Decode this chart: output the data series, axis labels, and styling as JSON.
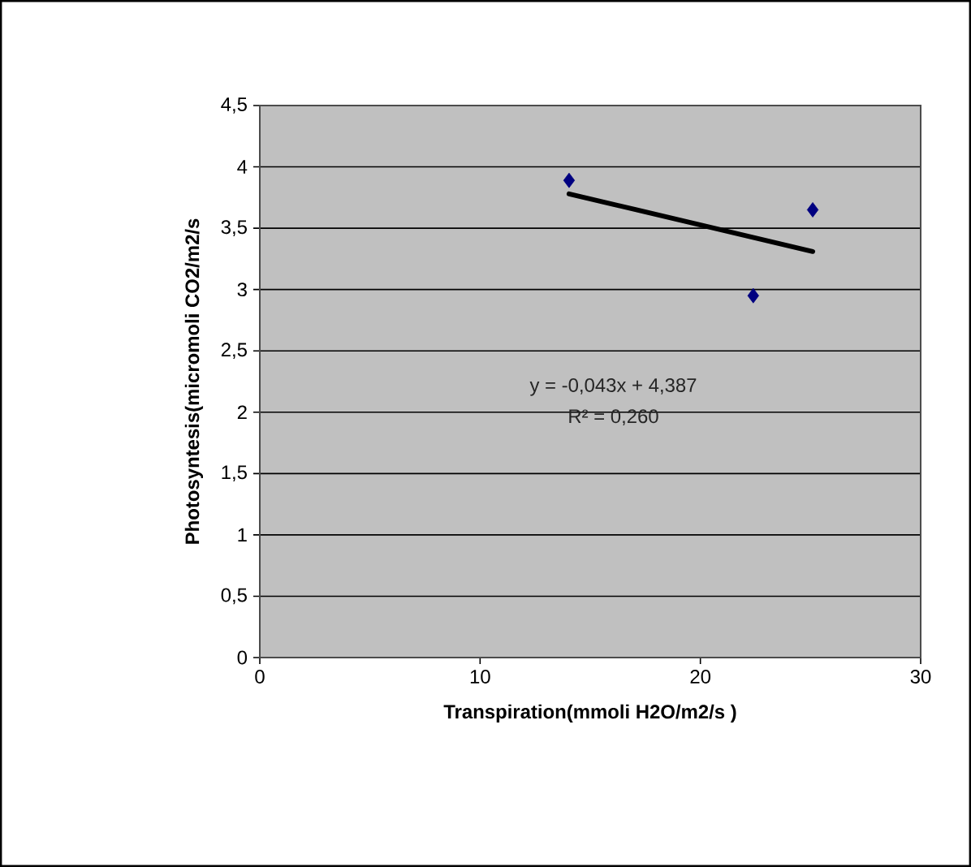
{
  "chart_data": {
    "type": "scatter",
    "xlabel": "Transpiration(mmoli H2O/m2/s )",
    "ylabel": "Photosyntesis(micromoli CO2/m2/s",
    "series": [
      {
        "color": "#000080",
        "marker": "diamond",
        "x": [
          14.04,
          22.4,
          25.1
        ],
        "values": [
          3.89,
          2.95,
          3.65
        ]
      },
      {
        "type": "line",
        "color": "#000000",
        "marker": "none",
        "line_style": "solid",
        "x": [
          14.04,
          25.1
        ],
        "values": [
          3.78,
          3.31
        ]
      }
    ],
    "xlim": [
      0,
      30
    ],
    "xticks": [
      0,
      10,
      20,
      30
    ],
    "ylim": [
      0,
      4.5
    ],
    "yticks": [
      0,
      {
        "value": 0.5,
        "label": "0,5"
      },
      1,
      {
        "value": 1.5,
        "label": "1,5"
      },
      2,
      {
        "value": 2.5,
        "label": "2,5"
      },
      3,
      {
        "value": 3.5,
        "label": "3,5"
      },
      4,
      {
        "value": 4.5,
        "label": "4,5"
      }
    ],
    "grid": "y",
    "annotations": [
      "y = -0,043x + 4,387",
      "R² = 0,260"
    ]
  }
}
